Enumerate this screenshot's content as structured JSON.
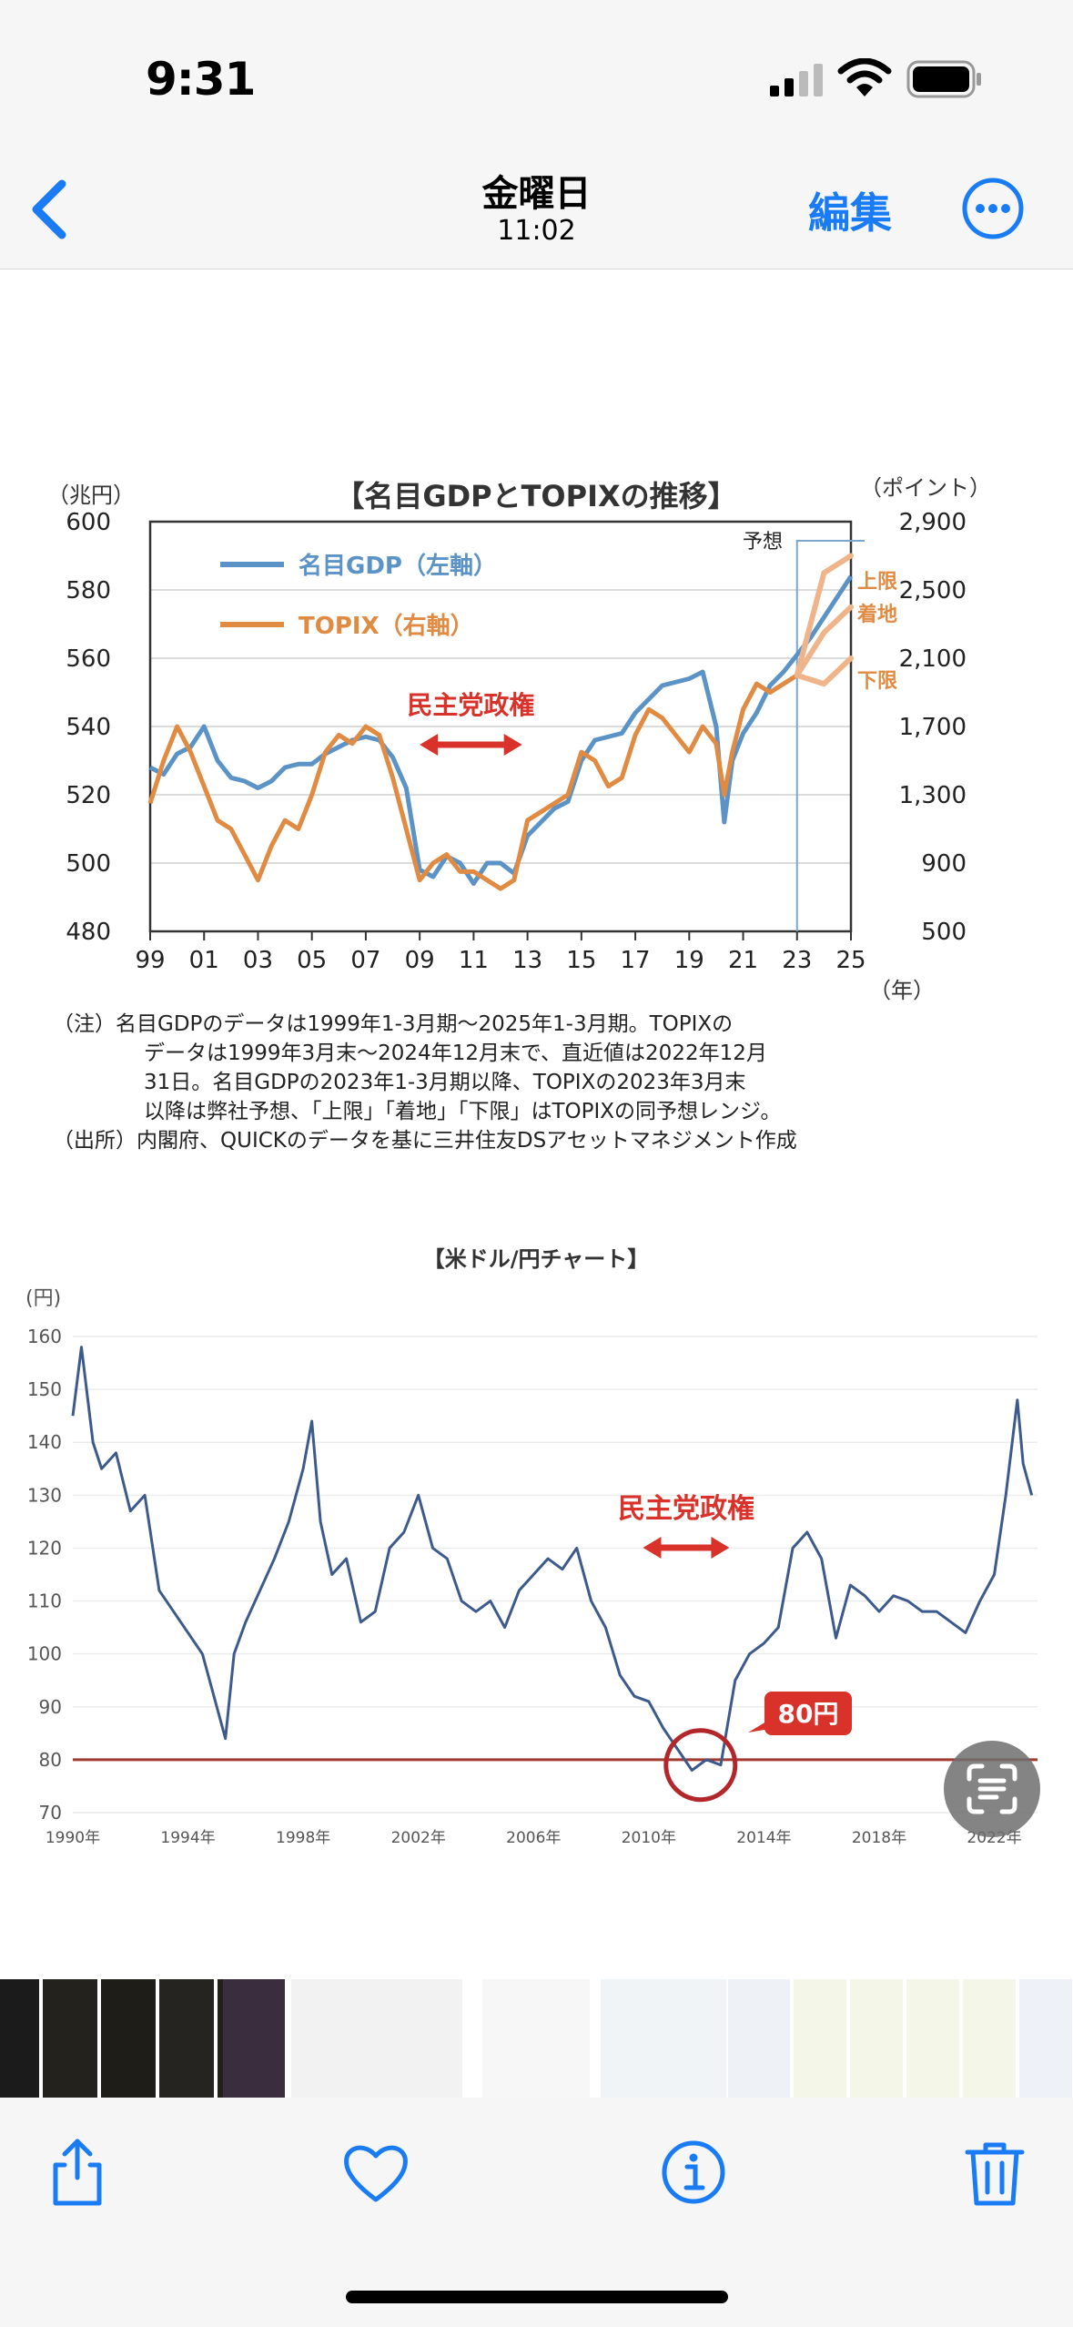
{
  "status_bar": {
    "time": "9:31",
    "icons": [
      "signal-icon",
      "wifi-icon",
      "battery-icon"
    ]
  },
  "nav": {
    "back_icon": "chevron-left-icon",
    "title": "金曜日",
    "subtitle": "11:02",
    "edit_label": "編集",
    "more_icon": "ellipsis-circle-icon"
  },
  "colors": {
    "accent": "#1a7cf5",
    "gdp": "#5b93c7",
    "topix": "#e08a42",
    "red": "#d9322a",
    "usdjpy": "#3d5a8c"
  },
  "chart_data": [
    {
      "type": "line",
      "title": "【名目GDPとTOPIXの推移】",
      "left_unit": "（兆円）",
      "right_unit": "（ポイント）",
      "year_unit": "（年）",
      "y_left_ticks": [
        "600",
        "580",
        "560",
        "540",
        "520",
        "500",
        "480"
      ],
      "y_right_ticks": [
        "2,900",
        "2,500",
        "2,100",
        "1,700",
        "1,300",
        "900",
        "500"
      ],
      "x_ticks": [
        "99",
        "01",
        "03",
        "05",
        "07",
        "09",
        "11",
        "13",
        "15",
        "17",
        "19",
        "21",
        "23",
        "25"
      ],
      "ylim_left": [
        480,
        600
      ],
      "ylim_right": [
        500,
        2900
      ],
      "xlim": [
        1999,
        2025
      ],
      "series": [
        {
          "name": "名目GDP（左軸）",
          "x": [
            1999,
            1999.5,
            2000,
            2000.5,
            2001,
            2001.5,
            2002,
            2002.5,
            2003,
            2003.5,
            2004,
            2004.5,
            2005,
            2005.5,
            2006,
            2006.5,
            2007,
            2007.5,
            2008,
            2008.5,
            2009,
            2009.5,
            2010,
            2010.5,
            2011,
            2011.5,
            2012,
            2012.5,
            2013,
            2013.5,
            2014,
            2014.5,
            2015,
            2015.5,
            2016,
            2016.5,
            2017,
            2017.5,
            2018,
            2018.5,
            2019,
            2019.5,
            2020,
            2020.3,
            2020.6,
            2021,
            2021.5,
            2022,
            2022.5,
            2023,
            2023.5,
            2024,
            2024.5,
            2025
          ],
          "values": [
            528,
            526,
            532,
            534,
            540,
            530,
            525,
            524,
            522,
            524,
            528,
            529,
            529,
            532,
            534,
            536,
            537,
            536,
            531,
            522,
            498,
            496,
            502,
            500,
            494,
            500,
            500,
            497,
            508,
            512,
            516,
            518,
            530,
            536,
            537,
            538,
            544,
            548,
            552,
            553,
            554,
            556,
            540,
            512,
            530,
            538,
            544,
            552,
            556,
            561,
            566,
            572,
            578,
            584
          ]
        },
        {
          "name": "TOPIX（右軸）",
          "x": [
            1999,
            1999.5,
            2000,
            2000.5,
            2001,
            2001.5,
            2002,
            2002.5,
            2003,
            2003.5,
            2004,
            2004.5,
            2005,
            2005.5,
            2006,
            2006.5,
            2007,
            2007.5,
            2008,
            2008.5,
            2009,
            2009.5,
            2010,
            2010.5,
            2011,
            2011.5,
            2012,
            2012.5,
            2013,
            2013.5,
            2014,
            2014.5,
            2015,
            2015.5,
            2016,
            2016.5,
            2017,
            2017.5,
            2018,
            2018.5,
            2019,
            2019.5,
            2020,
            2020.3,
            2020.6,
            2021,
            2021.5,
            2022,
            2022.5,
            2023
          ],
          "values": [
            1250,
            1500,
            1700,
            1550,
            1350,
            1150,
            1100,
            950,
            800,
            1000,
            1150,
            1100,
            1300,
            1550,
            1650,
            1600,
            1700,
            1650,
            1400,
            1100,
            800,
            900,
            950,
            850,
            850,
            800,
            750,
            800,
            1150,
            1200,
            1250,
            1300,
            1550,
            1500,
            1350,
            1400,
            1650,
            1800,
            1750,
            1650,
            1550,
            1700,
            1600,
            1300,
            1550,
            1800,
            1950,
            1900,
            1950,
            2000
          ]
        }
      ],
      "forecast": {
        "label": "予想",
        "upper_label": "上限",
        "mid_label": "着地",
        "lower_label": "下限",
        "x": [
          2023,
          2024,
          2025
        ],
        "upper": [
          2000,
          2600,
          2700
        ],
        "mid": [
          2000,
          2250,
          2400
        ],
        "lower": [
          2000,
          1950,
          2100
        ]
      },
      "annotation": {
        "label": "民主党政権",
        "x_start": 2009,
        "x_end": 2012.8
      },
      "notes": [
        "（注）名目GDPのデータは1999年1-3月期～2025年1-3月期。TOPIXの",
        "データは1999年3月末～2024年12月末で、直近値は2022年12月",
        "31日。名目GDPの2023年1-3月期以降、TOPIXの2023年3月末",
        "以降は弊社予想、「上限」「着地」「下限」はTOPIXの同予想レンジ。",
        "（出所）内閣府、QUICKのデータを基に三井住友DSアセットマネジメント作成"
      ]
    },
    {
      "type": "line",
      "title": "【米ドル/円チャート】",
      "y_unit": "(円)",
      "y_ticks": [
        "160",
        "150",
        "140",
        "130",
        "120",
        "110",
        "100",
        "90",
        "80",
        "70"
      ],
      "x_ticks": [
        "1990年",
        "1994年",
        "1998年",
        "2002年",
        "2006年",
        "2010年",
        "2014年",
        "2018年",
        "2022年"
      ],
      "ylim": [
        70,
        160
      ],
      "xlim": [
        1990,
        2023.5
      ],
      "series": [
        {
          "name": "",
          "x": [
            1990,
            1990.3,
            1990.7,
            1991,
            1991.5,
            1992,
            1992.5,
            1993,
            1993.5,
            1994,
            1994.5,
            1995,
            1995.3,
            1995.6,
            1996,
            1996.5,
            1997,
            1997.5,
            1998,
            1998.3,
            1998.6,
            1999,
            1999.5,
            2000,
            2000.5,
            2001,
            2001.5,
            2002,
            2002.5,
            2003,
            2003.5,
            2004,
            2004.5,
            2005,
            2005.5,
            2006,
            2006.5,
            2007,
            2007.5,
            2008,
            2008.5,
            2009,
            2009.5,
            2010,
            2010.5,
            2011,
            2011.5,
            2012,
            2012.5,
            2013,
            2013.5,
            2014,
            2014.5,
            2015,
            2015.5,
            2016,
            2016.5,
            2017,
            2017.5,
            2018,
            2018.5,
            2019,
            2019.5,
            2020,
            2020.5,
            2021,
            2021.5,
            2022,
            2022.4,
            2022.8,
            2023,
            2023.3
          ],
          "values": [
            145,
            158,
            140,
            135,
            138,
            127,
            130,
            112,
            108,
            104,
            100,
            90,
            84,
            100,
            106,
            112,
            118,
            125,
            135,
            144,
            125,
            115,
            118,
            106,
            108,
            120,
            123,
            130,
            120,
            118,
            110,
            108,
            110,
            105,
            112,
            115,
            118,
            116,
            120,
            110,
            105,
            96,
            92,
            91,
            86,
            82,
            78,
            80,
            79,
            95,
            100,
            102,
            105,
            120,
            123,
            118,
            103,
            113,
            111,
            108,
            111,
            110,
            108,
            108,
            106,
            104,
            110,
            115,
            130,
            148,
            136,
            130
          ]
        }
      ],
      "reference": {
        "value": 80,
        "label": "80円"
      },
      "annotation": {
        "label": "民主党政権",
        "x_start": 2009.8,
        "x_end": 2012.8
      }
    }
  ],
  "thumbnails": {
    "count": 15
  },
  "toolbar": {
    "icons": [
      "share-icon",
      "heart-icon",
      "info-icon",
      "trash-icon"
    ]
  }
}
